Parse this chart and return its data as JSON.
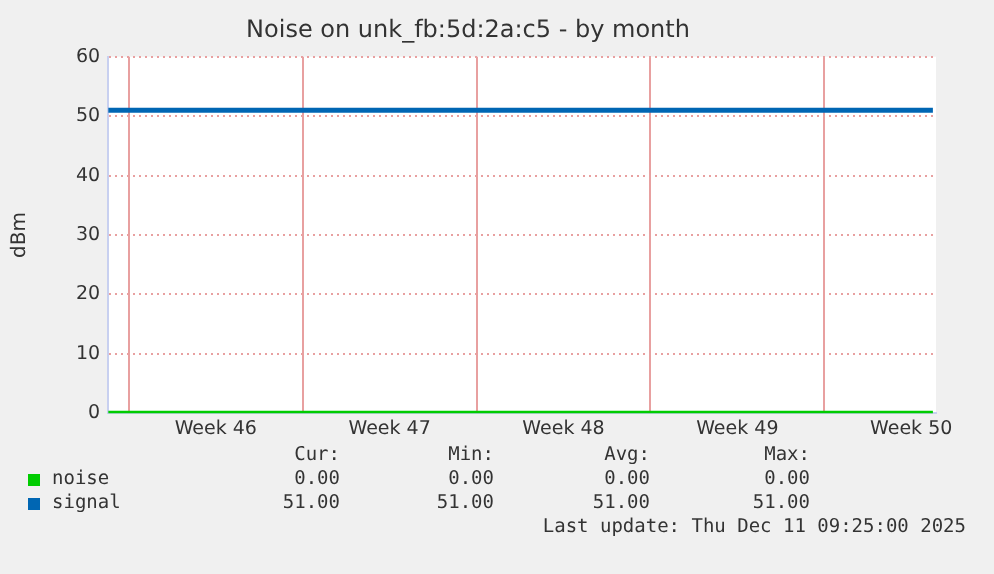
{
  "chart_data": {
    "type": "line",
    "title": "Noise on unk_fb:5d:2a:c5 - by month",
    "ylabel": "dBm",
    "xlim": [
      "2025-11-09T04:00",
      "2025-12-12T12:00"
    ],
    "xticks": [
      {
        "value": "2025-11-10",
        "label": null
      },
      {
        "value": "2025-11-13T12:00",
        "label": "Week 46"
      },
      {
        "value": "2025-11-17",
        "label": null
      },
      {
        "value": "2025-11-20T12:00",
        "label": "Week 47"
      },
      {
        "value": "2025-11-24",
        "label": null
      },
      {
        "value": "2025-11-27T12:00",
        "label": "Week 48"
      },
      {
        "value": "2025-12-01",
        "label": null
      },
      {
        "value": "2025-12-04T12:00",
        "label": "Week 49"
      },
      {
        "value": "2025-12-08",
        "label": null
      },
      {
        "value": "2025-12-11T12:00",
        "label": "Week 50"
      }
    ],
    "ylim": [
      0,
      60
    ],
    "yticks": [
      0,
      10,
      20,
      30,
      40,
      50,
      60
    ],
    "series": [
      {
        "name": "noise",
        "color": "#00cc00",
        "x": [
          "2025-11-09T04:00",
          "2025-12-12T09:00"
        ],
        "values": [
          0,
          0
        ]
      },
      {
        "name": "signal",
        "color": "#0066b3",
        "x": [
          "2025-11-09T04:00",
          "2025-12-12T09:00"
        ],
        "values": [
          51,
          51
        ]
      }
    ],
    "grid": true,
    "legend": "bottom",
    "marker": "none",
    "line_style": "solid",
    "annotations": [
      "Cur:",
      "Min:",
      "Avg:",
      "Max:",
      "0.00",
      "0.00",
      "0.00",
      "0.00",
      "51.00",
      "51.00",
      "51.00",
      "51.00",
      "Last update: Thu Dec 11 09:25:00 2025"
    ]
  }
}
